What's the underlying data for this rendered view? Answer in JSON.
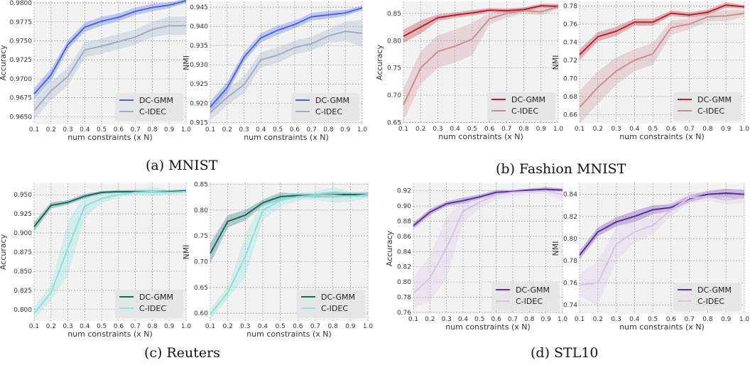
{
  "captions": [
    "(a) MNIST",
    "(b) Fashion MNIST",
    "(c) Reuters",
    "(d) STL10"
  ],
  "shared_x": {
    "values": [
      0.1,
      0.2,
      0.3,
      0.4,
      0.5,
      0.6,
      0.7,
      0.8,
      0.9,
      1.0
    ],
    "tick_labels": [
      "0.1",
      "0.2",
      "0.3",
      "0.4",
      "0.5",
      "0.6",
      "0.7",
      "0.8",
      "0.9",
      "1.0"
    ],
    "xlabel": "num constraints (x N)"
  },
  "chart_data": [
    {
      "type": "line",
      "panel": "MNIST",
      "ylabel": "Accuracy",
      "ylim": [
        0.964,
        0.9802
      ],
      "yticks": [
        0.965,
        0.9675,
        0.97,
        0.9725,
        0.975,
        0.9775,
        0.98
      ],
      "ytick_labels": [
        "0.9650",
        "0.9675",
        "0.9700",
        "0.9725",
        "0.9750",
        "0.9775",
        "0.9800"
      ],
      "legend": "bottom-right",
      "grid": true,
      "series": [
        {
          "name": "DC-GMM",
          "color": "#4b64e4",
          "values": [
            0.968,
            0.9705,
            0.9745,
            0.9768,
            0.9776,
            0.9781,
            0.9789,
            0.9794,
            0.9797,
            0.9803
          ],
          "band": [
            0.0008,
            0.0008,
            0.0006,
            0.0006,
            0.0006,
            0.0005,
            0.0005,
            0.0005,
            0.0004,
            0.0003
          ]
        },
        {
          "name": "C-IDEC",
          "color": "#9eadc8",
          "values": [
            0.9658,
            0.9684,
            0.9703,
            0.9738,
            0.9743,
            0.9749,
            0.9755,
            0.9765,
            0.977,
            0.977
          ],
          "band": [
            0.0012,
            0.0012,
            0.0012,
            0.001,
            0.001,
            0.001,
            0.001,
            0.001,
            0.0012,
            0.0012
          ]
        }
      ]
    },
    {
      "type": "line",
      "panel": "MNIST",
      "ylabel": "NMI",
      "ylim": [
        0.9145,
        0.9465
      ],
      "yticks": [
        0.915,
        0.92,
        0.925,
        0.93,
        0.935,
        0.94,
        0.945
      ],
      "ytick_labels": [
        "0.915",
        "0.920",
        "0.925",
        "0.930",
        "0.935",
        "0.940",
        "0.945"
      ],
      "legend": "bottom-right",
      "grid": true,
      "series": [
        {
          "name": "DC-GMM",
          "color": "#4b64e4",
          "values": [
            0.919,
            0.924,
            0.932,
            0.937,
            0.939,
            0.9405,
            0.9425,
            0.943,
            0.9435,
            0.9448
          ],
          "band": [
            0.0015,
            0.0015,
            0.0012,
            0.0012,
            0.0012,
            0.001,
            0.001,
            0.001,
            0.0008,
            0.0006
          ]
        },
        {
          "name": "C-IDEC",
          "color": "#9eadc8",
          "values": [
            0.9175,
            0.9215,
            0.9248,
            0.9313,
            0.9325,
            0.9345,
            0.9355,
            0.9375,
            0.9387,
            0.9382
          ],
          "band": [
            0.002,
            0.002,
            0.0022,
            0.002,
            0.002,
            0.0018,
            0.0018,
            0.0018,
            0.0025,
            0.0035
          ]
        }
      ]
    },
    {
      "type": "line",
      "panel": "Fashion MNIST",
      "ylabel": "Accuracy",
      "ylim": [
        0.648,
        0.872
      ],
      "yticks": [
        0.65,
        0.7,
        0.75,
        0.8,
        0.85
      ],
      "ytick_labels": [
        "0.65",
        "0.70",
        "0.75",
        "0.80",
        "0.85"
      ],
      "legend": "bottom-right",
      "grid": true,
      "series": [
        {
          "name": "DC-GMM",
          "color": "#b5222e",
          "values": [
            0.808,
            0.825,
            0.842,
            0.847,
            0.851,
            0.856,
            0.855,
            0.857,
            0.864,
            0.863
          ],
          "band": [
            0.012,
            0.012,
            0.006,
            0.005,
            0.005,
            0.004,
            0.004,
            0.004,
            0.004,
            0.004
          ]
        },
        {
          "name": "C-IDEC",
          "color": "#c98f94",
          "values": [
            0.682,
            0.75,
            0.78,
            0.79,
            0.803,
            0.84,
            0.85,
            0.855,
            0.853,
            0.862
          ],
          "band": [
            0.03,
            0.03,
            0.03,
            0.03,
            0.03,
            0.01,
            0.008,
            0.005,
            0.006,
            0.004
          ]
        }
      ]
    },
    {
      "type": "line",
      "panel": "Fashion MNIST",
      "ylabel": "NMI",
      "ylim": [
        0.65,
        0.785
      ],
      "yticks": [
        0.66,
        0.68,
        0.7,
        0.72,
        0.74,
        0.76,
        0.78
      ],
      "ytick_labels": [
        "0.66",
        "0.68",
        "0.70",
        "0.72",
        "0.74",
        "0.76",
        "0.78"
      ],
      "legend": "bottom-right",
      "grid": true,
      "series": [
        {
          "name": "DC-GMM",
          "color": "#b5222e",
          "values": [
            0.726,
            0.746,
            0.752,
            0.762,
            0.762,
            0.772,
            0.77,
            0.773,
            0.781,
            0.779
          ],
          "band": [
            0.006,
            0.005,
            0.005,
            0.004,
            0.004,
            0.003,
            0.003,
            0.003,
            0.003,
            0.002
          ]
        },
        {
          "name": "C-IDEC",
          "color": "#c98f94",
          "values": [
            0.668,
            0.69,
            0.708,
            0.72,
            0.727,
            0.756,
            0.76,
            0.768,
            0.769,
            0.772
          ],
          "band": [
            0.018,
            0.018,
            0.015,
            0.012,
            0.012,
            0.008,
            0.006,
            0.005,
            0.006,
            0.004
          ]
        }
      ]
    },
    {
      "type": "line",
      "panel": "Reuters",
      "ylabel": "Accuracy",
      "ylim": [
        0.785,
        0.965
      ],
      "yticks": [
        0.8,
        0.825,
        0.85,
        0.875,
        0.9,
        0.925,
        0.95
      ],
      "ytick_labels": [
        "0.800",
        "0.825",
        "0.850",
        "0.875",
        "0.900",
        "0.925",
        "0.950"
      ],
      "legend": "bottom-right",
      "grid": true,
      "series": [
        {
          "name": "DC-GMM",
          "color": "#126b5f",
          "values": [
            0.908,
            0.936,
            0.94,
            0.948,
            0.953,
            0.954,
            0.954,
            0.954,
            0.954,
            0.955
          ],
          "band": [
            0.006,
            0.004,
            0.003,
            0.003,
            0.002,
            0.002,
            0.002,
            0.002,
            0.002,
            0.002
          ]
        },
        {
          "name": "C-IDEC",
          "color": "#8ee0dc",
          "values": [
            0.795,
            0.822,
            0.88,
            0.935,
            0.945,
            0.95,
            0.953,
            0.954,
            0.953,
            0.954
          ],
          "band": [
            0.008,
            0.01,
            0.035,
            0.015,
            0.006,
            0.004,
            0.003,
            0.006,
            0.003,
            0.002
          ]
        }
      ]
    },
    {
      "type": "line",
      "panel": "Reuters",
      "ylabel": "NMI",
      "ylim": [
        0.585,
        0.852
      ],
      "yticks": [
        0.6,
        0.65,
        0.7,
        0.75,
        0.8,
        0.85
      ],
      "ytick_labels": [
        "0.60",
        "0.65",
        "0.70",
        "0.75",
        "0.80",
        "0.85"
      ],
      "legend": "bottom-right",
      "grid": true,
      "series": [
        {
          "name": "DC-GMM",
          "color": "#126b5f",
          "values": [
            0.716,
            0.778,
            0.79,
            0.814,
            0.826,
            0.828,
            0.828,
            0.83,
            0.83,
            0.83
          ],
          "band": [
            0.02,
            0.012,
            0.01,
            0.006,
            0.008,
            0.004,
            0.004,
            0.006,
            0.004,
            0.004
          ]
        },
        {
          "name": "C-IDEC",
          "color": "#8ee0dc",
          "values": [
            0.598,
            0.64,
            0.71,
            0.8,
            0.818,
            0.826,
            0.828,
            0.829,
            0.826,
            0.83
          ],
          "band": [
            0.01,
            0.012,
            0.04,
            0.02,
            0.012,
            0.008,
            0.008,
            0.015,
            0.01,
            0.006
          ]
        }
      ]
    },
    {
      "type": "line",
      "panel": "STL10",
      "ylabel": "Accuracy",
      "ylim": [
        0.758,
        0.93
      ],
      "yticks": [
        0.76,
        0.78,
        0.8,
        0.82,
        0.84,
        0.86,
        0.88,
        0.9,
        0.92
      ],
      "ytick_labels": [
        "0.76",
        "0.78",
        "0.80",
        "0.82",
        "0.84",
        "0.86",
        "0.88",
        "0.90",
        "0.92"
      ],
      "legend": "bottom-right",
      "grid": true,
      "series": [
        {
          "name": "DC-GMM",
          "color": "#5a2fa0",
          "values": [
            0.874,
            0.892,
            0.903,
            0.907,
            0.912,
            0.918,
            0.919,
            0.921,
            0.922,
            0.921
          ],
          "band": [
            0.004,
            0.004,
            0.003,
            0.004,
            0.003,
            0.003,
            0.002,
            0.002,
            0.003,
            0.002
          ]
        },
        {
          "name": "C-IDEC",
          "color": "#d8c4e3",
          "values": [
            0.785,
            0.805,
            0.845,
            0.893,
            0.905,
            0.915,
            0.918,
            0.919,
            0.92,
            0.915
          ],
          "band": [
            0.02,
            0.03,
            0.04,
            0.015,
            0.008,
            0.006,
            0.005,
            0.004,
            0.004,
            0.008
          ]
        }
      ]
    },
    {
      "type": "line",
      "panel": "STL10",
      "ylabel": "NMI",
      "ylim": [
        0.732,
        0.85
      ],
      "yticks": [
        0.74,
        0.76,
        0.78,
        0.8,
        0.82,
        0.84
      ],
      "ytick_labels": [
        "0.74",
        "0.76",
        "0.78",
        "0.80",
        "0.82",
        "0.84"
      ],
      "legend": "bottom-right",
      "grid": true,
      "series": [
        {
          "name": "DC-GMM",
          "color": "#5a2fa0",
          "values": [
            0.785,
            0.806,
            0.815,
            0.82,
            0.826,
            0.828,
            0.836,
            0.84,
            0.841,
            0.84
          ],
          "band": [
            0.004,
            0.004,
            0.004,
            0.005,
            0.004,
            0.003,
            0.003,
            0.003,
            0.004,
            0.004
          ]
        },
        {
          "name": "C-IDEC",
          "color": "#d8c4e3",
          "values": [
            0.758,
            0.76,
            0.795,
            0.806,
            0.812,
            0.826,
            0.837,
            0.838,
            0.835,
            0.837
          ],
          "band": [
            0.01,
            0.02,
            0.015,
            0.01,
            0.008,
            0.006,
            0.005,
            0.004,
            0.004,
            0.005
          ]
        }
      ]
    }
  ]
}
